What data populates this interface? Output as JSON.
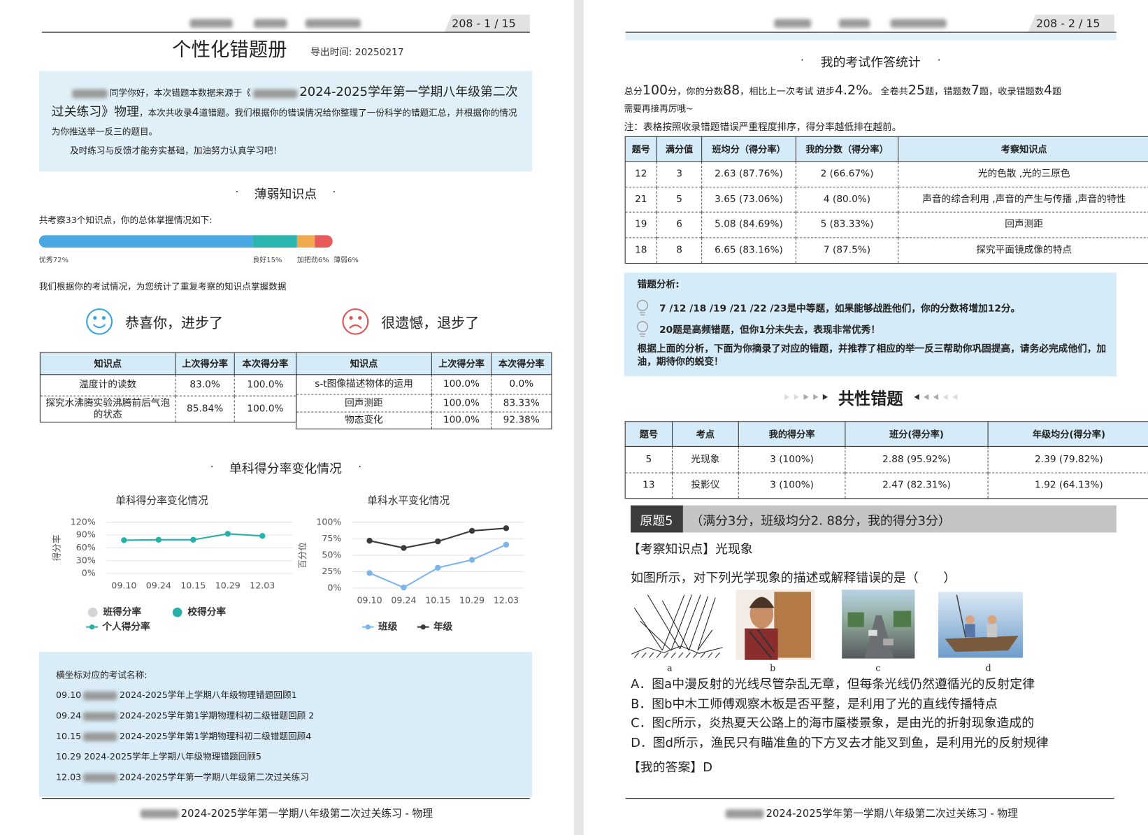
{
  "chart_data": [
    {
      "type": "line",
      "title": "单科得分率变化情况",
      "y_label": "得分率",
      "categories": [
        "09.10",
        "09.24",
        "10.15",
        "10.29",
        "12.03"
      ],
      "ylim": [
        0,
        120
      ],
      "yticks": [
        {
          "value": 0,
          "label": "0%"
        },
        {
          "value": 30,
          "label": "30%"
        },
        {
          "value": 60,
          "label": "60%"
        },
        {
          "value": 90,
          "label": "90%"
        },
        {
          "value": 120,
          "label": "120%"
        }
      ],
      "grid": true,
      "series": [
        {
          "name": "班得分率",
          "color": "#d4d4d4",
          "values": [
            null,
            null,
            null,
            null,
            null
          ]
        },
        {
          "name": "校得分率",
          "color": "#26b1a8",
          "values": [
            null,
            null,
            null,
            null,
            null
          ]
        },
        {
          "name": "个人得分率",
          "color": "#26b1a8",
          "values": [
            78,
            79,
            79,
            93,
            88
          ]
        }
      ]
    },
    {
      "type": "line",
      "title": "单科水平变化情况",
      "y_label": "百分位",
      "categories": [
        "09.10",
        "09.24",
        "10.15",
        "10.29",
        "12.03"
      ],
      "ylim": [
        0,
        100
      ],
      "yticks": [
        {
          "value": 0,
          "label": "0%"
        },
        {
          "value": 25,
          "label": "25%"
        },
        {
          "value": 50,
          "label": "50%"
        },
        {
          "value": 75,
          "label": "75%"
        },
        {
          "value": 100,
          "label": "100%"
        }
      ],
      "grid": true,
      "series": [
        {
          "name": "班级",
          "color": "#7cb5ec",
          "values": [
            23,
            1,
            31,
            43,
            66
          ]
        },
        {
          "name": "年级",
          "color": "#3a3a3a",
          "values": [
            72,
            61,
            71,
            87,
            91
          ]
        }
      ]
    }
  ],
  "pages": [
    {
      "header": {
        "page_number": "208  -  1 / 15"
      },
      "title": "个性化错题册",
      "export_time": "导出时间: 20250217",
      "intro": {
        "text1": "同学你好，本次错题本数据来源于《",
        "text2": "2024-2025学年第一学期八年级第二次过关练习》物理",
        "text3": "，本次共收录",
        "count": "4",
        "text4": "道错题。我们根据你的错误情况给你整理了一份科学的错题汇总，并根据你的情况为你推送举一反三的题目。",
        "tip": "及时练习与反馈才能夯实基础，加油努力认真学习吧！"
      },
      "weak": {
        "heading": "薄弱知识点",
        "summary": "共考察33个知识点，你的总体掌握情况如下:",
        "mastery": [
          {
            "label": "优秀72%",
            "value": 72,
            "color": "#4aa8e0"
          },
          {
            "label": "良好15%",
            "value": 15,
            "color": "#2bb5b0"
          },
          {
            "label": "加把劲6%",
            "value": 6,
            "color": "#f0a94e"
          },
          {
            "label": "薄弱6%",
            "value": 6,
            "color": "#e85a5a"
          }
        ],
        "note": "我们根据你的考试情况，为您统计了重复考察的知识点掌握数据"
      },
      "improved": {
        "title": "恭喜你，进步了",
        "headers": [
          "知识点",
          "上次得分率",
          "本次得分率"
        ],
        "rows": [
          [
            "温度计的读数",
            "83.0%",
            "100.0%"
          ],
          [
            "探究水沸腾实验沸腾前后气泡的状态",
            "85.84%",
            "100.0%"
          ]
        ]
      },
      "declined": {
        "title": "很遗憾，退步了",
        "headers": [
          "知识点",
          "上次得分率",
          "本次得分率"
        ],
        "rows": [
          [
            "s-t图像描述物体的运用",
            "100.0%",
            "0.0%"
          ],
          [
            "回声测距",
            "100.0%",
            "83.33%"
          ],
          [
            "物态变化",
            "100.0%",
            "92.38%"
          ]
        ]
      },
      "trend_heading": "单科得分率变化情况",
      "exams": {
        "title": "横坐标对应的考试名称:",
        "items": [
          {
            "date": "09.10",
            "name": "2024-2025学年上学期八年级物理错题回顾1",
            "redacted": true
          },
          {
            "date": "09.24",
            "name": "2024-2025学年第1学期物理科初二级错题回顾 2",
            "redacted": true
          },
          {
            "date": "10.15",
            "name": "2024-2025学年第1学期物理科初二级错题回顾4",
            "redacted": true
          },
          {
            "date": "10.29",
            "name": "2024-2025学年上学期八年级物理错题回顾5",
            "redacted": false
          },
          {
            "date": "12.03",
            "name": "2024-2025学年第一学期八年级第二次过关练习",
            "redacted": true
          }
        ]
      },
      "footer": "2024-2025学年第一学期八年级第二次过关练习 - 物理"
    },
    {
      "header": {
        "page_number": "208  -  2 / 15"
      },
      "stats_heading": "我的考试作答统计",
      "summary": [
        "总分",
        "100",
        "分，你的分数",
        "88",
        "，相比上一次考试 进步",
        "4.2%",
        "。 全卷共",
        "25",
        "题，错题数",
        "7",
        "题，收录错题数",
        "4",
        "题"
      ],
      "encourage": "需要再接再厉哦~",
      "note": "注：表格按照收录错题错误严重程度排序，得分率越低排在越前。",
      "stats_table": {
        "headers": [
          "题号",
          "满分值",
          "班均分（得分率）",
          "我的分数（得分率）",
          "考察知识点"
        ],
        "rows": [
          [
            "12",
            "3",
            "2.63 (87.76%)",
            "2 (66.67%)",
            "光的色散 ,光的三原色"
          ],
          [
            "21",
            "5",
            "3.65 (73.06%)",
            "4 (80.0%)",
            "声音的综合利用 ,声音的产生与传播 ,声音的特性"
          ],
          [
            "19",
            "6",
            "5.08 (84.69%)",
            "5 (83.33%)",
            "回声测距"
          ],
          [
            "18",
            "8",
            "6.65 (83.16%)",
            "7 (87.5%)",
            "探究平面镜成像的特点"
          ]
        ]
      },
      "analysis": {
        "title": "错题分析:",
        "items": [
          "7 /12 /18 /19 /21 /22 /23是中等题，如果能够战胜他们，你的分数将增加12分。",
          "20题是高频错题，但你1分未失去，表现非常优秀！"
        ],
        "conclusion": "根据上面的分析，下面为你摘录了对应的错题，并推荐了相应的举一反三帮助你巩固提高，请务必完成他们，加油，期待你的蜕变！"
      },
      "common_heading": "共性错题",
      "common_table": {
        "headers": [
          "题号",
          "考点",
          "我的得分率",
          "班分(得分率)",
          "年级均分(得分率)"
        ],
        "rows": [
          [
            "5",
            "光现象",
            "3 (100%)",
            "2.88 (95.92%)",
            "2.39 (79.82%)"
          ],
          [
            "13",
            "投影仪",
            "3 (100%)",
            "2.47 (82.31%)",
            "1.92 (64.13%)"
          ]
        ]
      },
      "question": {
        "badge": "原题5",
        "info": "（满分3分，班级均分2. 88分，我的得分3分）",
        "knowledge_label": "【考察知识点】",
        "knowledge": "光现象",
        "stem": "如图所示，对下列光学现象的描述或解释错误的是（　　）",
        "figure_labels": [
          "a",
          "b",
          "c",
          "d"
        ],
        "options": [
          "A．图a中漫反射的光线尽管杂乱无章，但每条光线仍然遵循光的反射定律",
          "B．图b中木工师傅观察木板是否平整，是利用了光的直线传播特点",
          "C．图c所示，炎热夏天公路上的海市蜃楼景象，是由光的折射现象造成的",
          "D．图d所示，渔民只有瞄准鱼的下方叉去才能叉到鱼，是利用光的反射规律"
        ],
        "answer_label": "【我的答案】",
        "answer": "D"
      },
      "footer": "2024-2025学年第一学期八年级第二次过关练习 - 物理"
    }
  ]
}
